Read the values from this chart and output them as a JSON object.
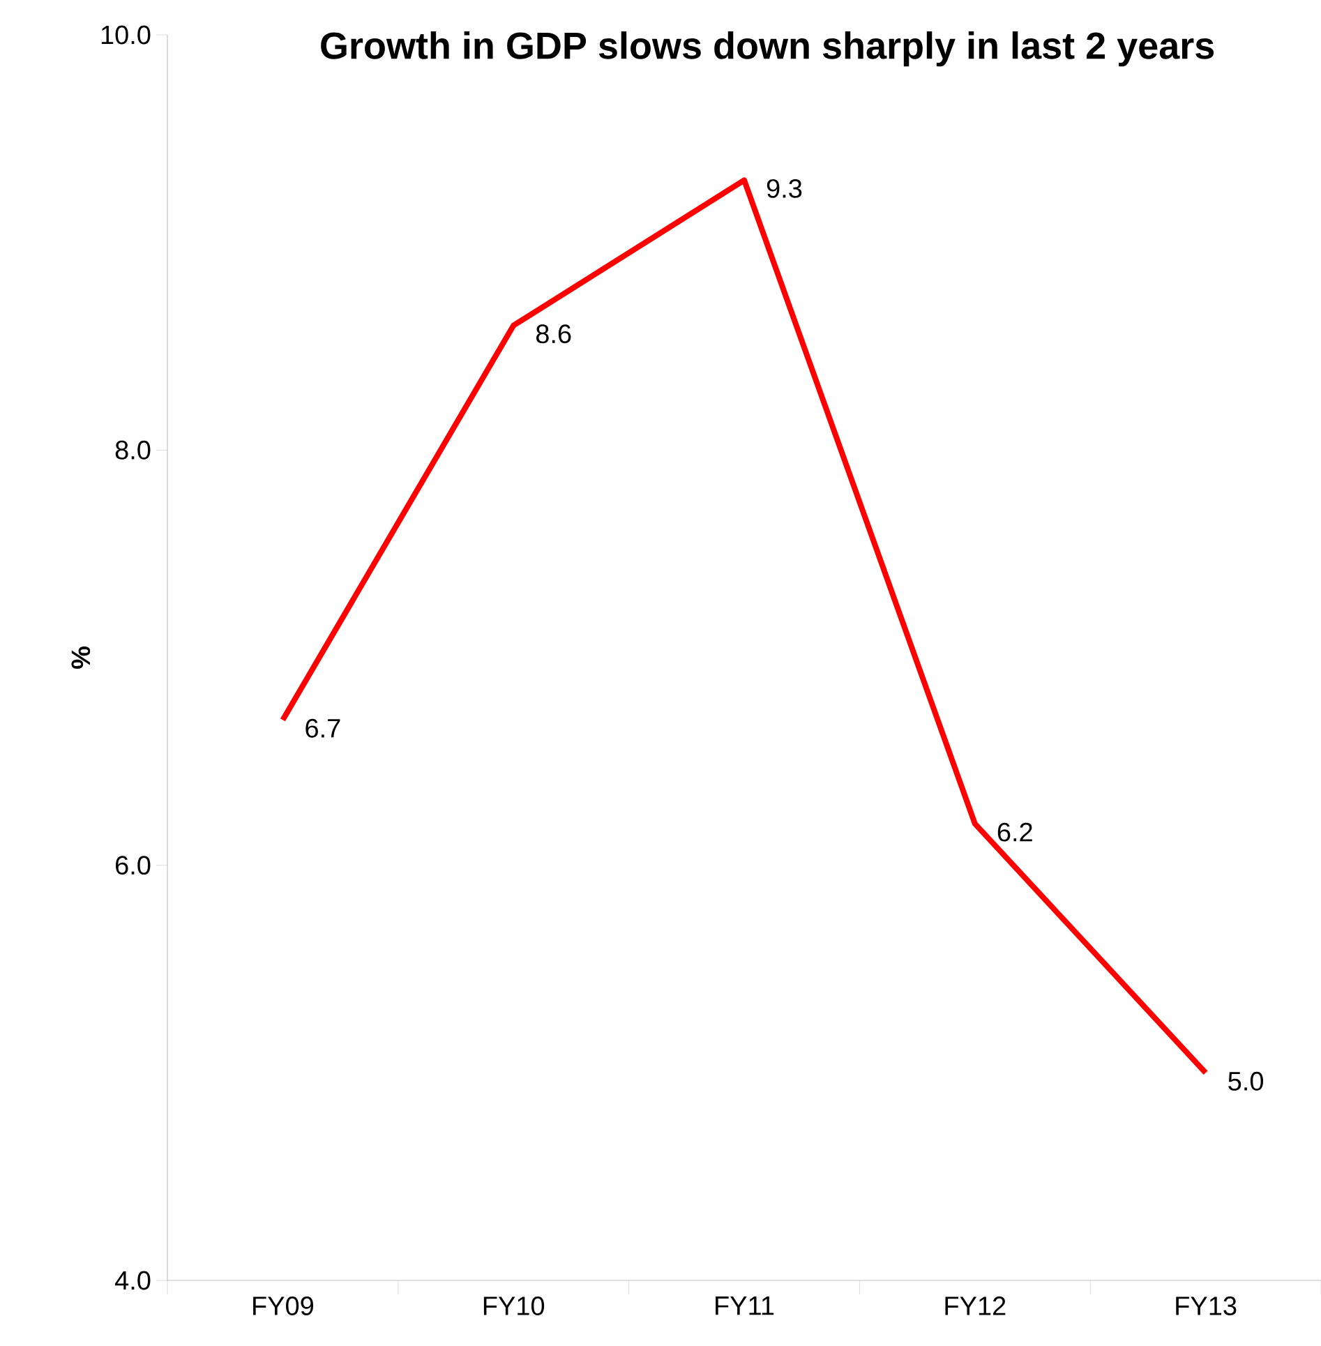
{
  "chart_data": {
    "type": "line",
    "title": "Growth in GDP slows down sharply in last 2 years",
    "ylabel": "%",
    "categories": [
      "FY09",
      "FY10",
      "FY11",
      "FY12",
      "FY13"
    ],
    "series": [
      {
        "color": "#ff0000",
        "values": [
          6.7,
          8.6,
          9.3,
          6.2,
          5.0
        ],
        "value_labels": [
          "6.7",
          "8.6",
          "9.3",
          "6.2",
          "5.0"
        ]
      }
    ],
    "ylim": [
      4,
      10
    ],
    "yticks": [
      {
        "value": 4,
        "label": "4.0"
      },
      {
        "value": 6,
        "label": "6.0"
      },
      {
        "value": 8,
        "label": "8.0"
      },
      {
        "value": 10,
        "label": "10.0"
      }
    ],
    "grid": false,
    "marker": "none",
    "line_style": "solid"
  }
}
